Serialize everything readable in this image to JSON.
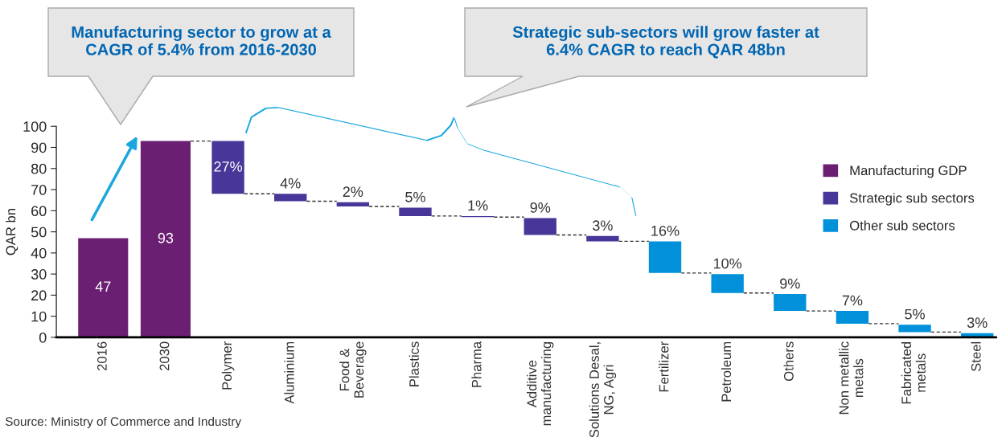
{
  "chart_data": {
    "type": "bar",
    "ylabel": "QAR bn",
    "categories": [
      "2016",
      "2030",
      "Polymer",
      "Aluminium",
      "Food &\nBeverage",
      "Plastics",
      "Pharma",
      "Additive\nmanufacturing",
      "Solutions Desal,\nNG, Agri",
      "Fertilizer",
      "Petroleum",
      "Others",
      "Non metallic\nmetals",
      "Fabricated\nmetals",
      "Steel"
    ],
    "series": [
      {
        "name": "Manufacturing GDP",
        "color": "#6b1f73",
        "values": [
          47,
          93,
          null,
          null,
          null,
          null,
          null,
          null,
          null,
          null,
          null,
          null,
          null,
          null,
          null
        ],
        "base": [
          0,
          0,
          null,
          null,
          null,
          null,
          null,
          null,
          null,
          null,
          null,
          null,
          null,
          null,
          null
        ],
        "value_labels": [
          "47",
          "93",
          null,
          null,
          null,
          null,
          null,
          null,
          null,
          null,
          null,
          null,
          null,
          null,
          null
        ]
      },
      {
        "name": "Strategic sub sectors",
        "color": "#483698",
        "values": [
          null,
          null,
          25,
          3.5,
          2,
          4,
          0.5,
          8,
          2.5,
          null,
          null,
          null,
          null,
          null,
          null
        ],
        "base": [
          null,
          null,
          68,
          64.5,
          62,
          57.5,
          57,
          48.5,
          45.5,
          null,
          null,
          null,
          null,
          null,
          null
        ]
      },
      {
        "name": "Other sub sectors",
        "color": "#0091da",
        "values": [
          null,
          null,
          null,
          null,
          null,
          null,
          null,
          null,
          null,
          15,
          9,
          8,
          6,
          3.5,
          2
        ],
        "base": [
          null,
          null,
          null,
          null,
          null,
          null,
          null,
          null,
          null,
          30.5,
          21,
          12.5,
          6.5,
          2.5,
          0
        ]
      }
    ],
    "ylim": [
      0,
      100
    ],
    "yticks": [
      0,
      10,
      20,
      30,
      40,
      50,
      60,
      70,
      80,
      90,
      100
    ],
    "grid": false,
    "legend": "top right",
    "annotations": [
      "Manufacturing sector to grow at a\nCAGR of 5.4% from 2016-2030",
      "Strategic sub-sectors will grow faster at\n6.4% CAGR to reach QAR 48bn",
      "Source: Ministry of Commerce and Industry",
      {
        "text": "27%",
        "x": "Polymer",
        "y": 93
      },
      {
        "text": "4%",
        "x": "Aluminium",
        "y": 68
      },
      {
        "text": "2%",
        "x": "Food &\nBeverage",
        "y": 64
      },
      {
        "text": "5%",
        "x": "Plastics",
        "y": 61.5
      },
      {
        "text": "1%",
        "x": "Pharma",
        "y": 57.5
      },
      {
        "text": "9%",
        "x": "Additive\nmanufacturing",
        "y": 56.5
      },
      {
        "text": "3%",
        "x": "Solutions Desal,\nNG, Agri",
        "y": 48
      },
      {
        "text": "16%",
        "x": "Fertilizer",
        "y": 45.5
      },
      {
        "text": "10%",
        "x": "Petroleum",
        "y": 30
      },
      {
        "text": "9%",
        "x": "Others",
        "y": 20.5
      },
      {
        "text": "7%",
        "x": "Non metallic\nmetals",
        "y": 12.5
      },
      {
        "text": "5%",
        "x": "Fabricated\nmetals",
        "y": 6
      },
      {
        "text": "3%",
        "x": "Steel",
        "y": 2
      }
    ]
  }
}
